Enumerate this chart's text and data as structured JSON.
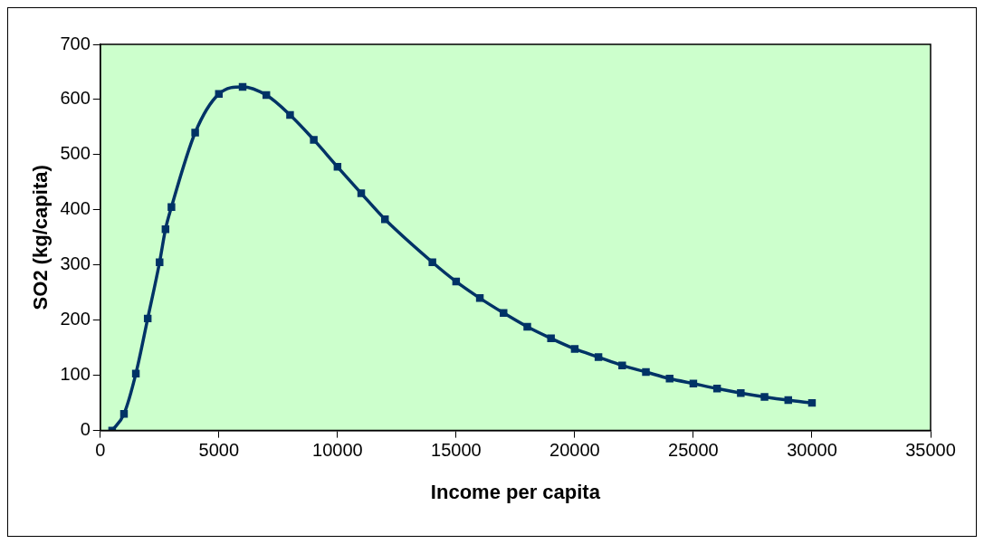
{
  "chart_data": {
    "type": "line",
    "xlabel": "Income per capita",
    "ylabel": "SO2 (kg/capita)",
    "x": [
      500,
      1000,
      1500,
      2000,
      2500,
      2750,
      3000,
      4000,
      5000,
      6000,
      7000,
      8000,
      9000,
      10000,
      11000,
      12000,
      14000,
      15000,
      16000,
      17000,
      18000,
      19000,
      20000,
      21000,
      22000,
      23000,
      24000,
      25000,
      26000,
      27000,
      28000,
      29000,
      30000
    ],
    "series": [
      {
        "color": "#003366",
        "values": [
          0,
          30,
          103,
          203,
          305,
          365,
          405,
          540,
          610,
          623,
          608,
          572,
          527,
          478,
          430,
          383,
          305,
          270,
          240,
          213,
          188,
          167,
          148,
          133,
          118,
          106,
          94,
          85,
          76,
          68,
          61,
          55,
          50
        ]
      }
    ],
    "xlim": [
      0,
      35000
    ],
    "xticks": [
      0,
      5000,
      10000,
      15000,
      20000,
      25000,
      30000,
      35000
    ],
    "ylim": [
      0,
      700
    ],
    "yticks": [
      0,
      100,
      200,
      300,
      400,
      500,
      600,
      700
    ],
    "grid": false,
    "legend": false,
    "marker": "square",
    "line_style": "solid"
  }
}
